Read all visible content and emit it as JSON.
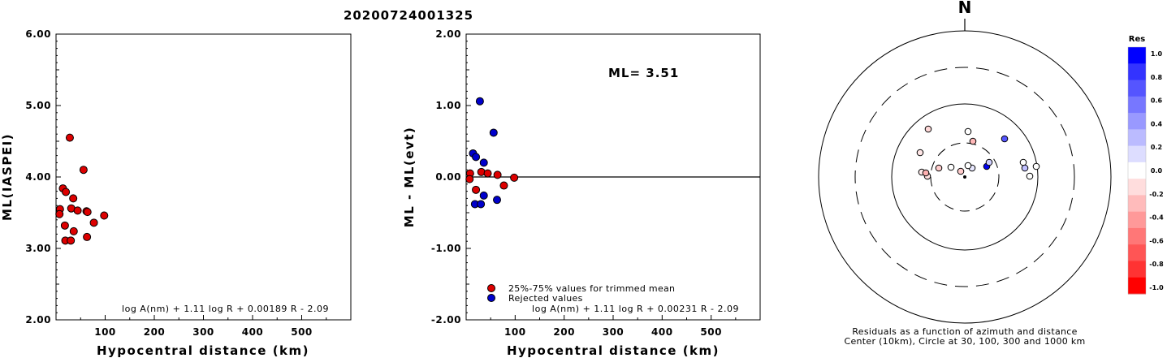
{
  "title": "20200724001325",
  "chart_data": [
    {
      "type": "scatter",
      "ylabel": "ML(IASPEI)",
      "xlabel": "Hypocentral distance (km)",
      "xlim": [
        0,
        600
      ],
      "ylim": [
        2.0,
        6.0
      ],
      "xticks": [
        "100",
        "200",
        "300",
        "400",
        "500"
      ],
      "yticks": [
        "2.00",
        "3.00",
        "4.00",
        "5.00",
        "6.00"
      ],
      "formula": "log A(nm) + 1.11 log R + 0.00189 R - 2.09",
      "points": [
        {
          "x": 8,
          "y": 3.55
        },
        {
          "x": 7,
          "y": 3.48
        },
        {
          "x": 14,
          "y": 3.84
        },
        {
          "x": 20,
          "y": 3.79
        },
        {
          "x": 28,
          "y": 4.55
        },
        {
          "x": 18,
          "y": 3.32
        },
        {
          "x": 31,
          "y": 3.56
        },
        {
          "x": 35,
          "y": 3.7
        },
        {
          "x": 44,
          "y": 3.53
        },
        {
          "x": 19,
          "y": 3.11
        },
        {
          "x": 30,
          "y": 3.11
        },
        {
          "x": 36,
          "y": 3.24
        },
        {
          "x": 56,
          "y": 4.1
        },
        {
          "x": 62,
          "y": 3.52
        },
        {
          "x": 64,
          "y": 3.51
        },
        {
          "x": 63,
          "y": 3.16
        },
        {
          "x": 77,
          "y": 3.36
        },
        {
          "x": 98,
          "y": 3.46
        }
      ]
    },
    {
      "type": "scatter",
      "ylabel": "ML - ML(evt)",
      "xlabel": "Hypocentral distance (km)",
      "xlim": [
        0,
        600
      ],
      "ylim": [
        -2.0,
        2.0
      ],
      "xticks": [
        "100",
        "200",
        "300",
        "400",
        "500"
      ],
      "yticks": [
        "-2.00",
        "-1.00",
        "0.00",
        "1.00",
        "2.00"
      ],
      "annotation": "ML= 3.51",
      "formula": "log A(nm) + 1.11 log R + 0.00231 R - 2.09",
      "reference_line_y": 0.0,
      "legend": [
        {
          "label": "25%-75% values for trimmed mean",
          "color": "#dd0000"
        },
        {
          "label": "Rejected values",
          "color": "#0000cc"
        }
      ],
      "series": [
        {
          "name": "25%-75% values for trimmed mean",
          "color": "#dd0000",
          "points": [
            {
              "x": 8,
              "y": 0.05
            },
            {
              "x": 7,
              "y": -0.03
            },
            {
              "x": 20,
              "y": -0.18
            },
            {
              "x": 31,
              "y": 0.07
            },
            {
              "x": 44,
              "y": 0.05
            },
            {
              "x": 64,
              "y": 0.03
            },
            {
              "x": 77,
              "y": -0.12
            },
            {
              "x": 98,
              "y": -0.01
            }
          ]
        },
        {
          "name": "Rejected values",
          "color": "#0000cc",
          "points": [
            {
              "x": 14,
              "y": 0.33
            },
            {
              "x": 20,
              "y": 0.28
            },
            {
              "x": 28,
              "y": 1.06
            },
            {
              "x": 36,
              "y": 0.2
            },
            {
              "x": 56,
              "y": 0.62
            },
            {
              "x": 18,
              "y": -0.38
            },
            {
              "x": 30,
              "y": -0.38
            },
            {
              "x": 36,
              "y": -0.26
            },
            {
              "x": 63,
              "y": -0.32
            }
          ]
        }
      ]
    }
  ],
  "residual_map": {
    "north_label": "N",
    "caption_line1": "Residuals as a function of azimuth and distance",
    "caption_line2": "Center (10km), Circle at 30, 100, 300 and 1000 km",
    "colorbar_title": "Res",
    "colorbar_ticks": [
      "1.0",
      "0.8",
      "0.6",
      "0.4",
      "0.2",
      "0.0",
      "-0.2",
      "-0.4",
      "-0.6",
      "-0.8",
      "-1.0"
    ],
    "colorbar_colors": [
      "#0000ff",
      "#3333ff",
      "#5555ff",
      "#7777ff",
      "#9999ff",
      "#bbbbff",
      "#ddddff",
      "#ffffff",
      "#ffdddd",
      "#ffbbbb",
      "#ff9999",
      "#ff7777",
      "#ff5555",
      "#ff3333",
      "#ff0000"
    ],
    "stations": [
      {
        "residual": 0.05,
        "color": "#ffd8d8"
      },
      {
        "residual": 0.05,
        "color": "#ffe6e6"
      },
      {
        "residual": -0.03,
        "color": "#ffeaea"
      },
      {
        "residual": 0.1,
        "color": "#ffe0e0"
      },
      {
        "residual": 0.05,
        "color": "#ffcccc"
      },
      {
        "residual": 0.03,
        "color": "#ffffff"
      },
      {
        "residual": -0.12,
        "color": "#ffcccc"
      },
      {
        "residual": -0.01,
        "color": "#ffffff"
      },
      {
        "residual": 0.33,
        "color": "#ffb8b8"
      },
      {
        "residual": 0.28,
        "color": "#e8e8ff"
      },
      {
        "residual": 1.06,
        "color": "#0000ee"
      },
      {
        "residual": 0.2,
        "color": "#cfcfff"
      },
      {
        "residual": 0.62,
        "color": "#5555ff"
      },
      {
        "residual": -0.38,
        "color": "#ffffff"
      },
      {
        "residual": -0.38,
        "color": "#bfbfff"
      },
      {
        "residual": -0.26,
        "color": "#ffffff"
      },
      {
        "residual": -0.32,
        "color": "#ffffff"
      },
      {
        "residual": 0.0,
        "color": "#ffb0b0"
      },
      {
        "residual": 0.0,
        "color": "#ffffff"
      }
    ]
  }
}
